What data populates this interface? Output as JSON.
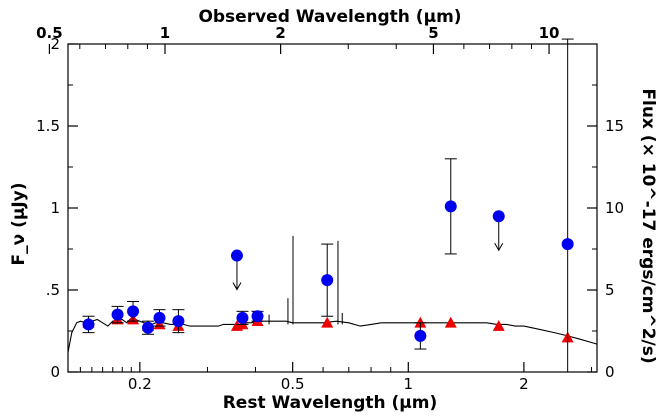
{
  "chart_data": {
    "type": "scatter",
    "title": "",
    "xlabel": "Rest Wavelength (μm)",
    "x2label": "Observed Wavelength (μm)",
    "ylabel": "F_ν (μJy)",
    "y2label": "Flux (× 10^-17 ergs/cm^2/s)",
    "x_scale": "log",
    "xlim": [
      0.13,
      3.1
    ],
    "ylim": [
      0,
      2
    ],
    "y2lim": [
      0,
      20
    ],
    "grid": false,
    "x_ticks": [
      {
        "v": 0.2,
        "label": "0.2"
      },
      {
        "v": 0.5,
        "label": "0.5"
      },
      {
        "v": 1,
        "label": "1"
      },
      {
        "v": 2,
        "label": "2"
      }
    ],
    "x2_ticks": [
      {
        "v": 0.5,
        "label": "0.5"
      },
      {
        "v": 1,
        "label": "1"
      },
      {
        "v": 2,
        "label": "2"
      },
      {
        "v": 5,
        "label": "5"
      },
      {
        "v": 10,
        "label": "10"
      }
    ],
    "y_ticks": [
      {
        "v": 0,
        "label": "0"
      },
      {
        "v": 0.5,
        "label": ".5"
      },
      {
        "v": 1,
        "label": "1"
      },
      {
        "v": 1.5,
        "label": "1.5"
      },
      {
        "v": 2,
        "label": "2"
      }
    ],
    "y2_ticks": [
      {
        "v": 0,
        "label": "0"
      },
      {
        "v": 5,
        "label": "5"
      },
      {
        "v": 10,
        "label": "10"
      },
      {
        "v": 15,
        "label": "15"
      }
    ],
    "series": [
      {
        "kind": "observed",
        "color": "#0000ee",
        "marker": "circle",
        "points": [
          {
            "x": 0.147,
            "y": 0.29,
            "err": 0.05
          },
          {
            "x": 0.175,
            "y": 0.35,
            "err": 0.05
          },
          {
            "x": 0.192,
            "y": 0.37,
            "err": 0.06
          },
          {
            "x": 0.21,
            "y": 0.27,
            "err": 0.04
          },
          {
            "x": 0.225,
            "y": 0.33,
            "err": 0.05
          },
          {
            "x": 0.252,
            "y": 0.31,
            "err": 0.07
          },
          {
            "x": 0.358,
            "y": 0.71,
            "upper_limit": true
          },
          {
            "x": 0.37,
            "y": 0.33,
            "err": 0.04
          },
          {
            "x": 0.405,
            "y": 0.34,
            "err": 0.03
          },
          {
            "x": 0.615,
            "y": 0.56,
            "err": 0.22
          },
          {
            "x": 1.075,
            "y": 0.22,
            "err": 0.08
          },
          {
            "x": 1.29,
            "y": 1.01,
            "err": 0.29
          },
          {
            "x": 1.72,
            "y": 0.95,
            "upper_limit": true
          },
          {
            "x": 2.6,
            "y": 0.78,
            "err": 1.25
          }
        ]
      },
      {
        "kind": "model",
        "color": "#ee0000",
        "marker": "triangle",
        "points": [
          {
            "x": 0.147,
            "y": 0.3
          },
          {
            "x": 0.175,
            "y": 0.32
          },
          {
            "x": 0.192,
            "y": 0.32
          },
          {
            "x": 0.21,
            "y": 0.28
          },
          {
            "x": 0.225,
            "y": 0.29
          },
          {
            "x": 0.252,
            "y": 0.28
          },
          {
            "x": 0.358,
            "y": 0.28
          },
          {
            "x": 0.37,
            "y": 0.29
          },
          {
            "x": 0.405,
            "y": 0.31
          },
          {
            "x": 0.615,
            "y": 0.3
          },
          {
            "x": 1.075,
            "y": 0.3
          },
          {
            "x": 1.29,
            "y": 0.3
          },
          {
            "x": 1.72,
            "y": 0.28
          },
          {
            "x": 2.6,
            "y": 0.21
          }
        ]
      }
    ],
    "model_spectrum": {
      "color": "#000000",
      "x": [
        0.13,
        0.133,
        0.137,
        0.14,
        0.145,
        0.15,
        0.155,
        0.16,
        0.165,
        0.17,
        0.175,
        0.18,
        0.185,
        0.19,
        0.195,
        0.2,
        0.205,
        0.21,
        0.215,
        0.22,
        0.225,
        0.23,
        0.24,
        0.25,
        0.26,
        0.27,
        0.28,
        0.29,
        0.3,
        0.31,
        0.32,
        0.33,
        0.34,
        0.35,
        0.36,
        0.365,
        0.37,
        0.38,
        0.39,
        0.4,
        0.42,
        0.45,
        0.48,
        0.5,
        0.55,
        0.6,
        0.65,
        0.7,
        0.75,
        0.8,
        0.85,
        0.9,
        0.95,
        1.0,
        1.1,
        1.2,
        1.3,
        1.4,
        1.5,
        1.6,
        1.7,
        1.8,
        1.9,
        2.0,
        2.2,
        2.4,
        2.6,
        2.8,
        3.0,
        3.1
      ],
      "y": [
        0.12,
        0.24,
        0.3,
        0.31,
        0.3,
        0.31,
        0.32,
        0.3,
        0.28,
        0.31,
        0.32,
        0.32,
        0.3,
        0.33,
        0.32,
        0.31,
        0.3,
        0.3,
        0.29,
        0.3,
        0.3,
        0.3,
        0.29,
        0.29,
        0.29,
        0.28,
        0.28,
        0.28,
        0.28,
        0.28,
        0.28,
        0.29,
        0.29,
        0.29,
        0.29,
        0.28,
        0.29,
        0.3,
        0.3,
        0.31,
        0.31,
        0.31,
        0.31,
        0.3,
        0.3,
        0.3,
        0.31,
        0.3,
        0.28,
        0.29,
        0.3,
        0.3,
        0.3,
        0.3,
        0.3,
        0.3,
        0.3,
        0.3,
        0.3,
        0.3,
        0.29,
        0.29,
        0.28,
        0.28,
        0.26,
        0.24,
        0.22,
        0.2,
        0.18,
        0.17
      ]
    },
    "emission_lines": [
      {
        "x": 0.376,
        "y": 0.36
      },
      {
        "x": 0.395,
        "y": 0.37
      },
      {
        "x": 0.434,
        "y": 0.35
      },
      {
        "x": 0.486,
        "y": 0.45
      },
      {
        "x": 0.501,
        "y": 0.83
      },
      {
        "x": 0.656,
        "y": 0.8
      },
      {
        "x": 0.673,
        "y": 0.36
      }
    ]
  }
}
